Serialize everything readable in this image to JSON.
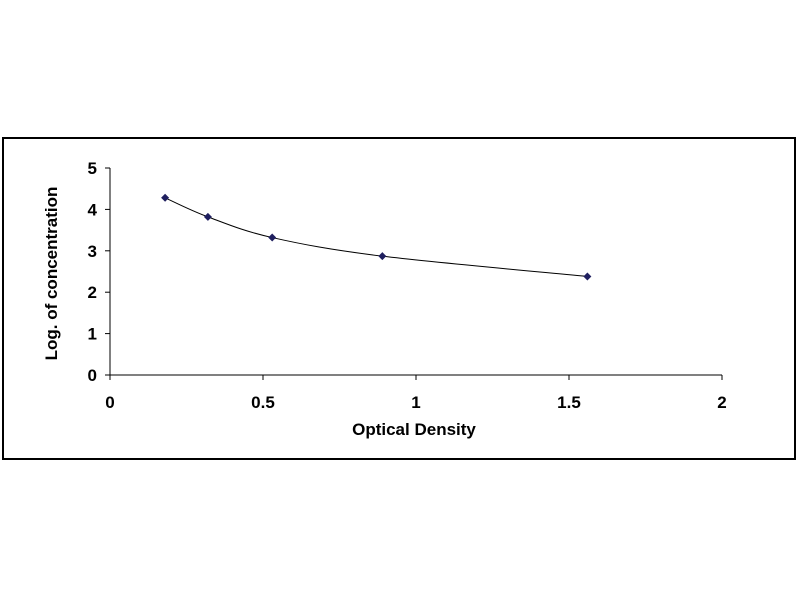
{
  "chart_data": {
    "type": "scatter",
    "title": "",
    "xlabel": "Optical Density",
    "ylabel": "Log. of concentration",
    "xlim": [
      0,
      2
    ],
    "ylim": [
      0,
      5
    ],
    "x_ticks": [
      "0",
      "0.5",
      "1",
      "1.5",
      "2"
    ],
    "y_ticks": [
      "0",
      "1",
      "2",
      "3",
      "4",
      "5"
    ],
    "grid": false,
    "legend": "none",
    "series": [
      {
        "x": [
          0.18,
          0.32,
          0.53,
          0.89,
          1.56
        ],
        "y": [
          4.28,
          3.82,
          3.32,
          2.87,
          2.38
        ],
        "trendline": "smooth curve",
        "color": "#1f1f5f"
      }
    ]
  }
}
